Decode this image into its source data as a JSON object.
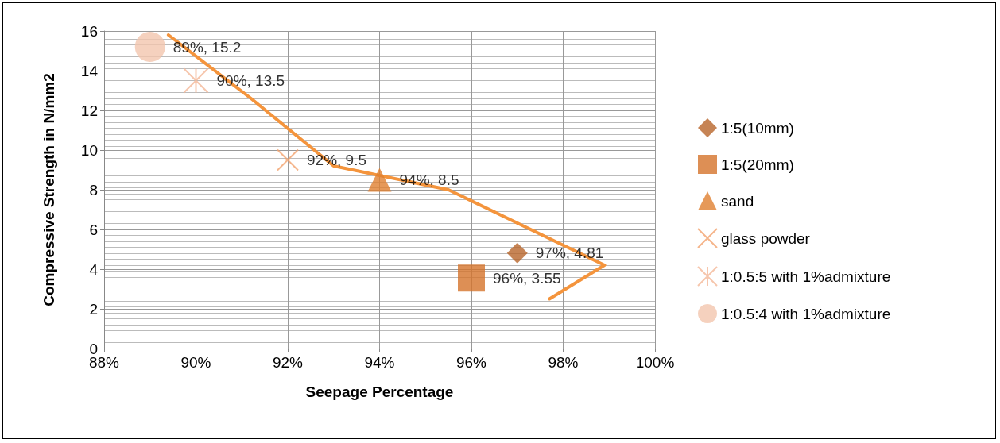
{
  "chart_data": {
    "type": "scatter",
    "xlabel": "Seepage Percentage",
    "ylabel": "Compressive Strength in N/mm2",
    "xlim": [
      88,
      100
    ],
    "xticks": [
      {
        "value": 88,
        "label": "88%"
      },
      {
        "value": 90,
        "label": "90%"
      },
      {
        "value": 92,
        "label": "92%"
      },
      {
        "value": 94,
        "label": "94%"
      },
      {
        "value": 96,
        "label": "96%"
      },
      {
        "value": 98,
        "label": "98%"
      },
      {
        "value": 100,
        "label": "100%"
      }
    ],
    "ylim": [
      0,
      16
    ],
    "yticks": [
      0,
      2,
      4,
      6,
      8,
      10,
      12,
      14,
      16
    ],
    "grid": true,
    "legend": "right",
    "series": [
      {
        "name": "1:5(10mm)",
        "color": "#b8652a",
        "marker": "diamond",
        "x": [
          97
        ],
        "values": [
          4.81
        ],
        "value_labels": [
          "97%, 4.81"
        ]
      },
      {
        "name": "1:5(20mm)",
        "color": "#d4732a",
        "marker": "square",
        "x": [
          96
        ],
        "values": [
          3.55
        ],
        "value_labels": [
          "96%, 3.55"
        ]
      },
      {
        "name": "sand",
        "color": "#e07f30",
        "marker": "triangle",
        "x": [
          94
        ],
        "values": [
          8.5
        ],
        "value_labels": [
          "94%, 8.5"
        ]
      },
      {
        "name": "glass powder",
        "color": "#f2a26e",
        "marker": "cross",
        "x": [
          92
        ],
        "values": [
          9.5
        ],
        "value_labels": [
          "92%, 9.5"
        ]
      },
      {
        "name": "1:0.5:5 with 1%admixture",
        "color": "#f4b898",
        "marker": "star",
        "x": [
          90
        ],
        "values": [
          13.5
        ],
        "value_labels": [
          "90%, 13.5"
        ]
      },
      {
        "name": "1:0.5:4 with 1%admixture",
        "color": "#f2c6ae",
        "marker": "circle",
        "x": [
          89
        ],
        "values": [
          15.2
        ],
        "value_labels": [
          "89%, 15.2"
        ]
      },
      {
        "type": "line",
        "color": "#f4943c",
        "marker": "none",
        "x": [
          89.4,
          91.2,
          93,
          95.5,
          98.9,
          97.7
        ],
        "values": [
          15.8,
          12.6,
          9.2,
          8,
          4.2,
          2.5
        ]
      }
    ]
  }
}
